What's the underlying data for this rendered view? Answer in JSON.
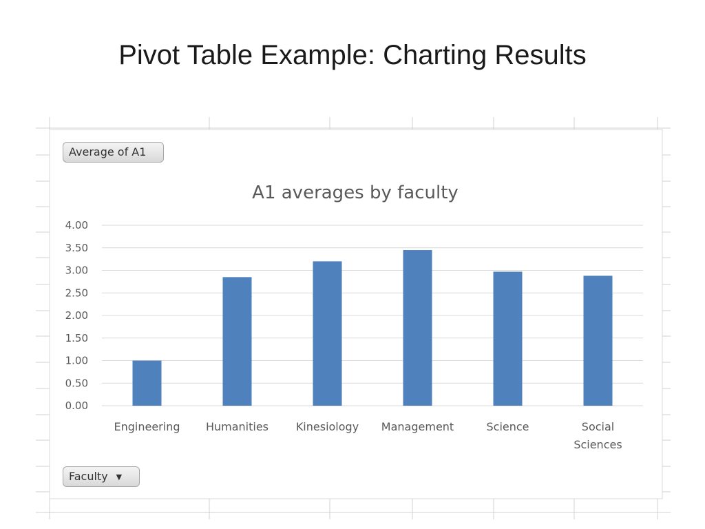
{
  "slide": {
    "title": "Pivot Table Example: Charting Results"
  },
  "pivot": {
    "value_field_label": "Average of A1",
    "axis_field_label": "Faculty",
    "axis_field_icon": "dropdown-arrow-icon"
  },
  "colors": {
    "bar": "#4f81bd",
    "grid": "#d9d9d9",
    "sheet_grid": "#d0d0d0",
    "axis_text": "#595959"
  },
  "chart_data": {
    "type": "bar",
    "title": "A1 averages by faculty",
    "categories": [
      [
        "Engineering"
      ],
      [
        "Humanities"
      ],
      [
        "Kinesiology"
      ],
      [
        "Management"
      ],
      [
        "Science"
      ],
      [
        "Social",
        "Sciences"
      ]
    ],
    "values": [
      1.0,
      2.85,
      3.2,
      3.45,
      2.97,
      2.88
    ],
    "ylim": [
      0,
      4
    ],
    "yticks": [
      "0.00",
      "0.50",
      "1.00",
      "1.50",
      "2.00",
      "2.50",
      "3.00",
      "3.50",
      "4.00"
    ],
    "xlabel": "",
    "ylabel": "",
    "grid": true,
    "legend": "none"
  }
}
